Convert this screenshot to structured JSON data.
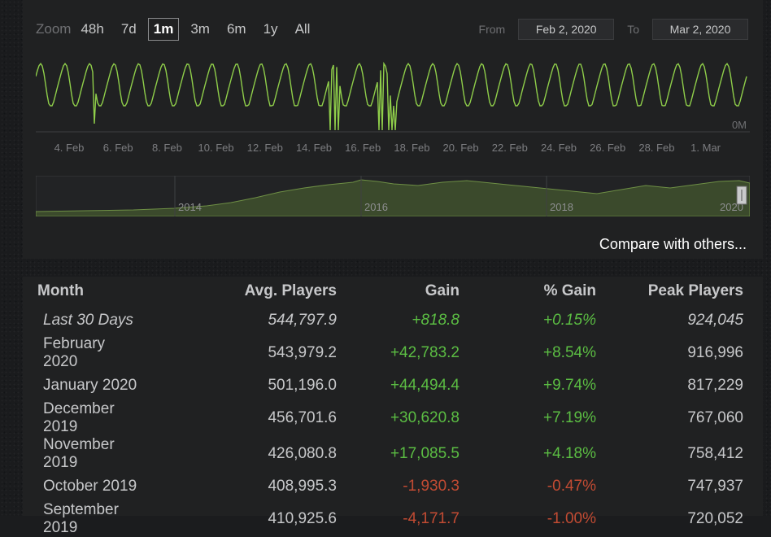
{
  "zoom": {
    "label": "Zoom",
    "options": [
      "48h",
      "7d",
      "1m",
      "3m",
      "6m",
      "1y",
      "All"
    ],
    "selected": "1m"
  },
  "range": {
    "from_label": "From",
    "from_value": "Feb 2, 2020",
    "to_label": "To",
    "to_value": "Mar 2, 2020"
  },
  "chart": {
    "x_tick_labels": [
      "4. Feb",
      "6. Feb",
      "8. Feb",
      "10. Feb",
      "12. Feb",
      "14. Feb",
      "16. Feb",
      "18. Feb",
      "20. Feb",
      "22. Feb",
      "24. Feb",
      "26. Feb",
      "28. Feb",
      "1. Mar"
    ],
    "y_label": "0M",
    "line_color": "#8fce4a",
    "nav_year_labels": [
      "2014",
      "2016",
      "2018",
      "2020"
    ],
    "nav_fill_color": "#3b4a2c"
  },
  "compare_link": "Compare with others...",
  "table": {
    "headers": [
      "Month",
      "Avg. Players",
      "Gain",
      "% Gain",
      "Peak Players"
    ],
    "rows": [
      {
        "month": "Last 30 Days",
        "avg": "544,797.9",
        "gain": "+818.8",
        "pct": "+0.15%",
        "peak": "924,045",
        "italic": true
      },
      {
        "month": "February 2020",
        "avg": "543,979.2",
        "gain": "+42,783.2",
        "pct": "+8.54%",
        "peak": "916,996",
        "italic": false
      },
      {
        "month": "January 2020",
        "avg": "501,196.0",
        "gain": "+44,494.4",
        "pct": "+9.74%",
        "peak": "817,229",
        "italic": false
      },
      {
        "month": "December 2019",
        "avg": "456,701.6",
        "gain": "+30,620.8",
        "pct": "+7.19%",
        "peak": "767,060",
        "italic": false
      },
      {
        "month": "November 2019",
        "avg": "426,080.8",
        "gain": "+17,085.5",
        "pct": "+4.18%",
        "peak": "758,412",
        "italic": false
      },
      {
        "month": "October 2019",
        "avg": "408,995.3",
        "gain": "-1,930.3",
        "pct": "-0.47%",
        "peak": "747,937",
        "italic": false
      },
      {
        "month": "September 2019",
        "avg": "410,925.6",
        "gain": "-4,171.7",
        "pct": "-1.00%",
        "peak": "720,052",
        "italic": false
      }
    ]
  },
  "colors": {
    "positive": "#5bbd43",
    "negative": "#c24b33"
  }
}
